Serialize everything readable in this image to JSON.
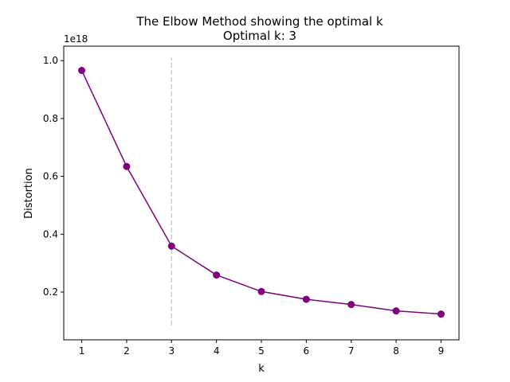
{
  "chart_data": {
    "type": "line",
    "title": "The Elbow Method showing the optimal k",
    "subtitle": "Optimal k: 3",
    "xlabel": "k",
    "ylabel": "Distortion",
    "y_offset_label": "1e18",
    "x": [
      1,
      2,
      3,
      4,
      5,
      6,
      7,
      8,
      9
    ],
    "series": [
      {
        "values": [
          0.966,
          0.634,
          0.359,
          0.259,
          0.202,
          0.175,
          0.157,
          0.135,
          0.124
        ],
        "color": "#800080",
        "marker": "circle"
      }
    ],
    "xlim": [
      0.6,
      9.4
    ],
    "ylim": [
      0.035,
      1.05
    ],
    "x_ticks": [
      1,
      2,
      3,
      4,
      5,
      6,
      7,
      8,
      9
    ],
    "y_ticks": [
      0.2,
      0.4,
      0.6,
      0.8,
      1.0
    ],
    "y_tick_labels": [
      "0.2",
      "0.4",
      "0.6",
      "0.8",
      "1.0"
    ],
    "grid": false,
    "vline": {
      "x": 3,
      "ymin": 0.085,
      "ymax": 1.01,
      "color": "#add8e6",
      "style": "dashed"
    }
  }
}
